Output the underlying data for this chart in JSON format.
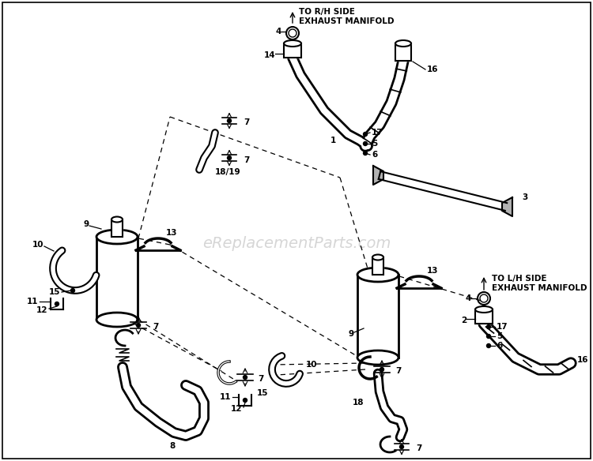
{
  "background_color": "#ffffff",
  "watermark": "eReplacementParts.com",
  "watermark_color": "#bbbbbb",
  "watermark_fontsize": 14,
  "rh_label": "TO R/H SIDE\nEXHAUST MANIFOLD",
  "lh_label": "TO L/H SIDE\nEXHAUST MANIFOLD",
  "figsize": [
    7.5,
    5.84
  ],
  "dpi": 100,
  "border": true
}
